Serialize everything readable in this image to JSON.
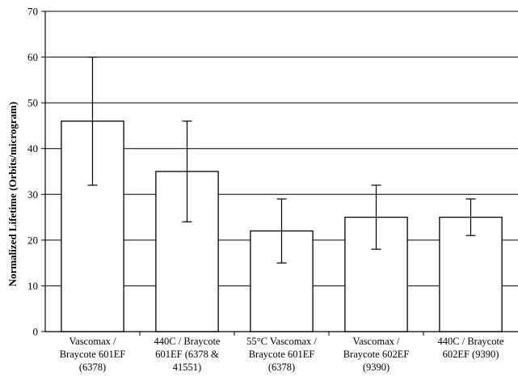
{
  "chart_data": {
    "type": "bar",
    "title": "",
    "xlabel": "",
    "ylabel": "Normalized Lifetime (Orbits/microgram)",
    "ylim": [
      0,
      70
    ],
    "yticks": [
      0,
      10,
      20,
      30,
      40,
      50,
      60,
      70
    ],
    "grid": true,
    "categories": [
      [
        "Vascomax /",
        "Braycote 601EF",
        "(6378)"
      ],
      [
        "440C / Braycote",
        "601EF (6378 &",
        "41551)"
      ],
      [
        "55°C Vascomax /",
        "Braycote 601EF",
        "(6378)"
      ],
      [
        "Vascomax /",
        "Braycote 602EF",
        "(9390)"
      ],
      [
        "440C / Braycote",
        "602EF (9390)"
      ]
    ],
    "values": [
      46,
      35,
      22,
      25,
      25
    ],
    "error_low": [
      32,
      24,
      15,
      18,
      21
    ],
    "error_high": [
      60,
      46,
      29,
      32,
      29
    ],
    "colors": {
      "bar_fill": "#ffffff",
      "bar_stroke": "#000000",
      "grid": "#000000"
    }
  }
}
